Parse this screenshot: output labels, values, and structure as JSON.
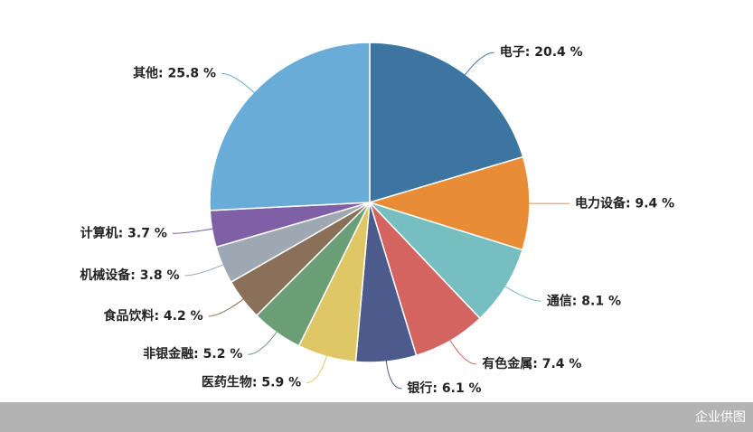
{
  "chart_data": {
    "type": "pie",
    "labels": [
      "电子: 20.4 %",
      "电力设备: 9.4 %",
      "通信: 8.1 %",
      "有色金属: 7.4 %",
      "银行: 6.1 %",
      "医药生物: 5.9 %",
      "非银金融: 5.2 %",
      "食品饮料: 4.2 %",
      "机械设备: 3.8 %",
      "计算机: 3.7 %",
      "其他: 25.8 %"
    ],
    "values": [
      20.4,
      9.4,
      8.1,
      7.4,
      6.1,
      5.9,
      5.2,
      4.2,
      3.8,
      3.7,
      25.8
    ],
    "colors": [
      "#3c76a0",
      "#e88c36",
      "#77bec0",
      "#d46460",
      "#4c5a8c",
      "#e0c766",
      "#6c9e76",
      "#8a7058",
      "#9ea8b2",
      "#7f60a6",
      "#6aacd8"
    ]
  },
  "footer": "企业供图"
}
